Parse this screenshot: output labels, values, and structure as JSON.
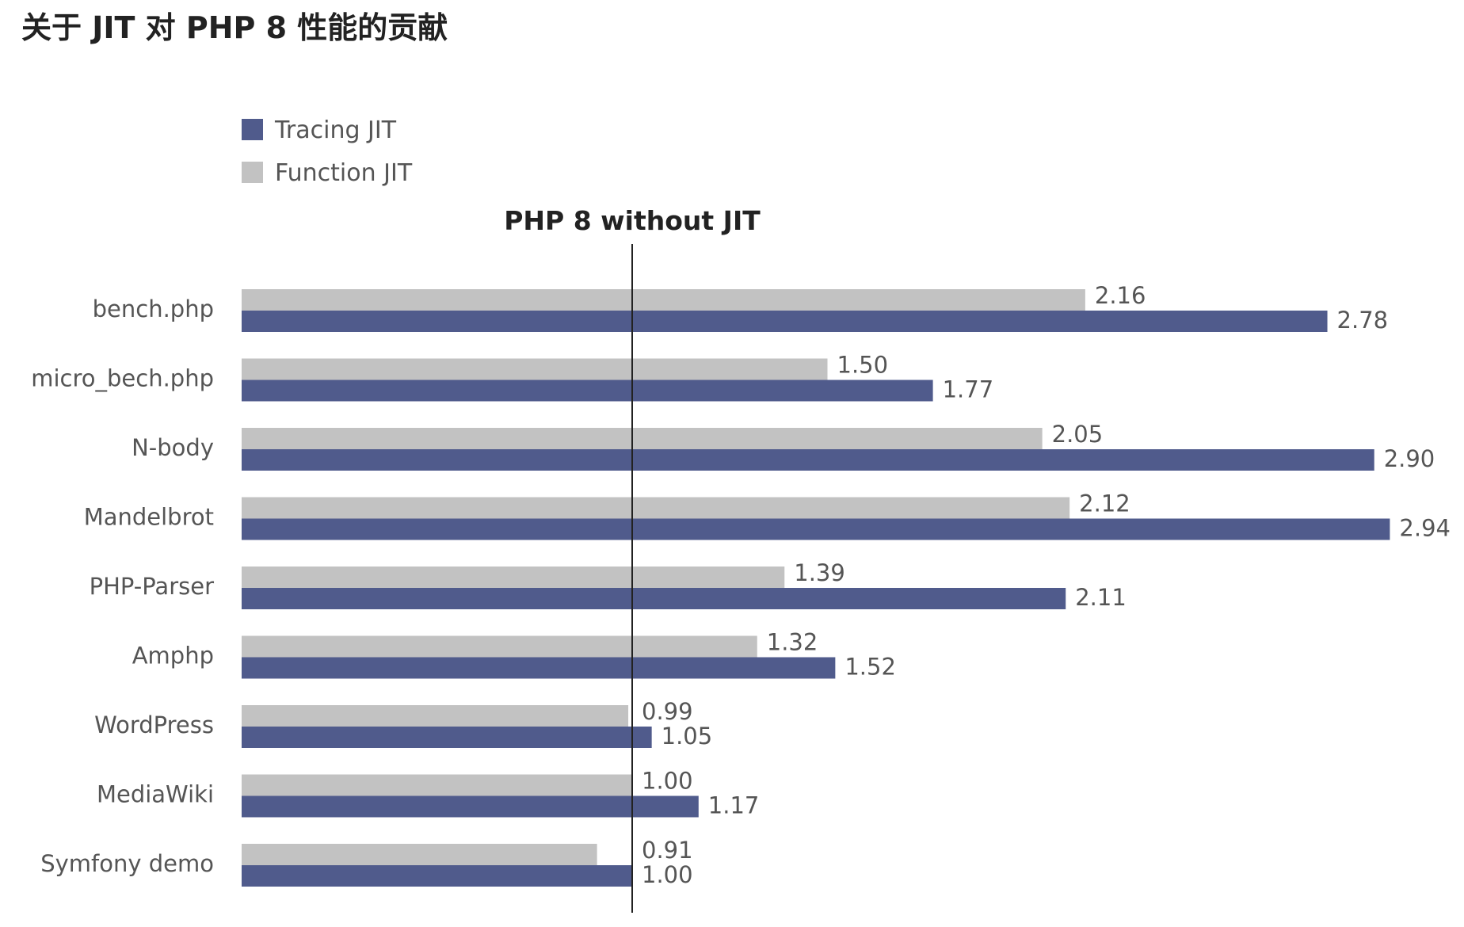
{
  "title": "关于 JIT 对 PHP 8 性能的贡献",
  "chart_data": {
    "type": "bar",
    "orientation": "horizontal",
    "title": "关于 JIT 对 PHP 8 性能的贡献",
    "categories": [
      "bench.php",
      "micro_bech.php",
      "N-body",
      "Mandelbrot",
      "PHP-Parser",
      "Amphp",
      "WordPress",
      "MediaWiki",
      "Symfony demo"
    ],
    "series": [
      {
        "name": "Tracing JIT",
        "color": "#505b8c",
        "values": [
          2.78,
          1.77,
          2.9,
          2.94,
          2.11,
          1.52,
          1.05,
          1.17,
          1.0
        ],
        "labels": [
          "2.78",
          "1.77",
          "2.90",
          "2.94",
          "2.11",
          "1.52",
          "1.05",
          "1.17",
          "1.00"
        ]
      },
      {
        "name": "Function JIT",
        "color": "#c2c2c2",
        "values": [
          2.16,
          1.5,
          2.05,
          2.12,
          1.39,
          1.32,
          0.99,
          1.0,
          0.91
        ],
        "labels": [
          "2.16",
          "1.50",
          "2.05",
          "2.12",
          "1.39",
          "1.32",
          "0.99",
          "1.00",
          "0.91"
        ]
      }
    ],
    "reference_line": {
      "value": 1.0,
      "label": "PHP 8 without JIT",
      "color": "#222222"
    },
    "xlim": [
      0,
      3.0
    ],
    "grid": false,
    "legend_position": "top-left",
    "xlabel": "",
    "ylabel": ""
  }
}
